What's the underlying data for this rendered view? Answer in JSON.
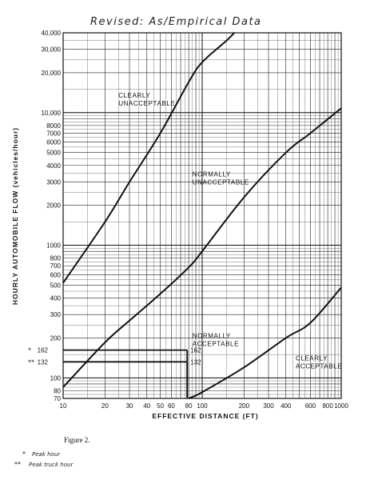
{
  "handwritten_title": "Revised: As/Empirical Data",
  "figure_caption": "Figure 2.",
  "footnotes": [
    {
      "mark": "*",
      "text": "Peak hour"
    },
    {
      "mark": "**",
      "text": "Peak truck hour"
    }
  ],
  "chart_data": {
    "type": "line",
    "xscale": "log",
    "yscale": "log",
    "xlim": [
      10,
      1000
    ],
    "ylim": [
      70,
      40000
    ],
    "grid": true,
    "xlabel": "EFFECTIVE DISTANCE (FT)",
    "ylabel": "HOURLY AUTOMOBILE FLOW (vehicles/hour)",
    "x_ticks": [
      10,
      20,
      30,
      40,
      50,
      60,
      80,
      100,
      200,
      300,
      400,
      600,
      800,
      1000
    ],
    "x_tick_labels": [
      "10",
      "20",
      "30",
      "40",
      "50",
      "60",
      "80",
      "100",
      "200",
      "300",
      "400",
      "600",
      "800",
      "1000"
    ],
    "y_ticks": [
      70,
      80,
      100,
      200,
      300,
      400,
      500,
      600,
      700,
      800,
      1000,
      2000,
      3000,
      4000,
      5000,
      6000,
      7000,
      8000,
      10000,
      20000,
      30000,
      40000
    ],
    "y_tick_labels": [
      "70",
      "80",
      "100",
      "200",
      "300",
      "400",
      "500",
      "600",
      "700",
      "800",
      "1000",
      "2000",
      "3000",
      "4000",
      "5000",
      "6000",
      "7000",
      "8000",
      "10,000",
      "20,000",
      "30,000",
      "40,000"
    ],
    "series": [
      {
        "x": [
          10,
          20,
          30,
          50,
          80,
          100,
          150,
          170
        ],
        "y": [
          520,
          1500,
          3000,
          7000,
          17000,
          24000,
          35000,
          40000
        ]
      },
      {
        "x": [
          10,
          20,
          30,
          50,
          80,
          100,
          200,
          400,
          600,
          1000
        ],
        "y": [
          85,
          185,
          270,
          430,
          680,
          900,
          2300,
          5000,
          7000,
          10800
        ]
      },
      {
        "x": [
          80,
          100,
          200,
          400,
          600,
          1000
        ],
        "y": [
          70,
          78,
          120,
          200,
          260,
          480
        ]
      }
    ],
    "region_labels": [
      {
        "lines": [
          "CLEARLY",
          "UNACCEPTABLE"
        ],
        "x": 25,
        "y": 13000
      },
      {
        "lines": [
          "NORMALLY",
          "UNACCEPTABLE"
        ],
        "x": 85,
        "y": 3300
      },
      {
        "lines": [
          "NORMALLY",
          "ACCEPTABLE"
        ],
        "x": 85,
        "y": 200
      },
      {
        "lines": [
          "CLEARLY",
          "ACCEPTABLE"
        ],
        "x": 470,
        "y": 135
      }
    ],
    "reference_lines": [
      {
        "y": 162,
        "label": "162",
        "mark": "*",
        "x_end": 78
      },
      {
        "y": 132,
        "label": "132",
        "mark": "**",
        "x_end": 78
      }
    ]
  }
}
